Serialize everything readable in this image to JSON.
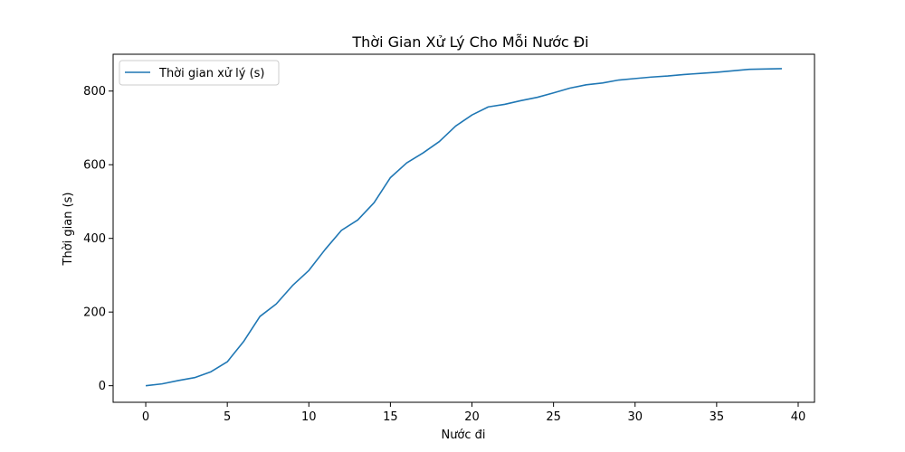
{
  "chart_data": {
    "type": "line",
    "title": "Thời Gian Xử Lý Cho Mỗi Nước Đi",
    "xlabel": "Nước đi",
    "ylabel": "Thời gian (s)",
    "xlim": [
      -2,
      41
    ],
    "ylim": [
      -45,
      900
    ],
    "xticks": [
      0,
      5,
      10,
      15,
      20,
      25,
      30,
      35,
      40
    ],
    "yticks": [
      0,
      200,
      400,
      600,
      800
    ],
    "grid": false,
    "legend_position": "top-left",
    "series": [
      {
        "name": "Thời gian xử lý (s)",
        "color": "#1f77b4",
        "x": [
          0,
          1,
          2,
          3,
          4,
          5,
          6,
          7,
          8,
          9,
          10,
          11,
          12,
          13,
          14,
          15,
          16,
          17,
          18,
          19,
          20,
          21,
          22,
          23,
          24,
          25,
          26,
          27,
          28,
          29,
          30,
          31,
          32,
          33,
          34,
          35,
          36,
          37,
          38,
          39
        ],
        "y": [
          0,
          5,
          14,
          22,
          38,
          65,
          120,
          188,
          222,
          272,
          313,
          370,
          422,
          450,
          497,
          565,
          605,
          632,
          663,
          705,
          735,
          757,
          764,
          774,
          783,
          795,
          808,
          817,
          822,
          830,
          834,
          838,
          841,
          845,
          848,
          851,
          855,
          859,
          860,
          861
        ]
      }
    ]
  }
}
